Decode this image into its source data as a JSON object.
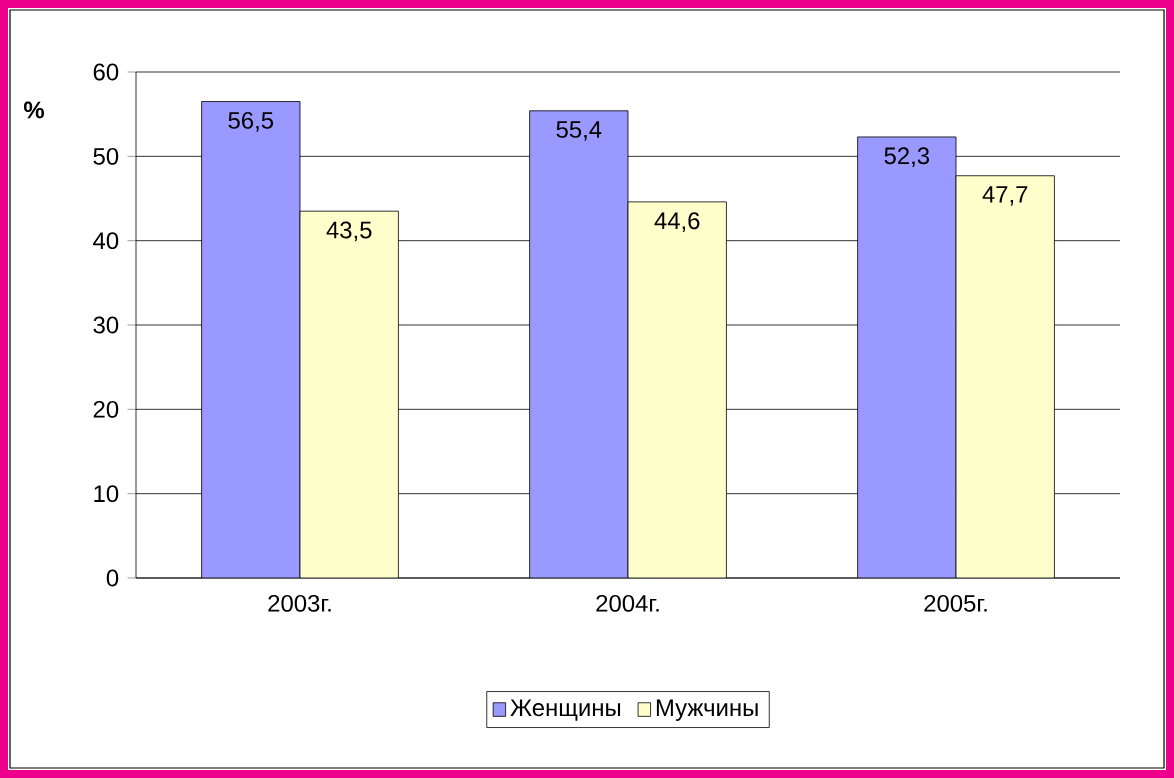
{
  "chart_data": {
    "type": "bar",
    "ylabel": "%",
    "categories": [
      "2003г.",
      "2004г.",
      "2005г."
    ],
    "series": [
      {
        "name": "Женщины",
        "color": "#9999ff",
        "values": [
          56.5,
          55.4,
          52.3
        ],
        "value_labels": [
          "56,5",
          "55,4",
          "52,3"
        ]
      },
      {
        "name": "Мужчины",
        "color": "#ffffcc",
        "values": [
          43.5,
          44.6,
          47.7
        ],
        "value_labels": [
          "43,5",
          "44,6",
          "47,7"
        ]
      }
    ],
    "ylim": [
      0,
      60
    ],
    "yticks": [
      0,
      10,
      20,
      30,
      40,
      50,
      60
    ],
    "grid": "y",
    "legend": "bottom"
  }
}
